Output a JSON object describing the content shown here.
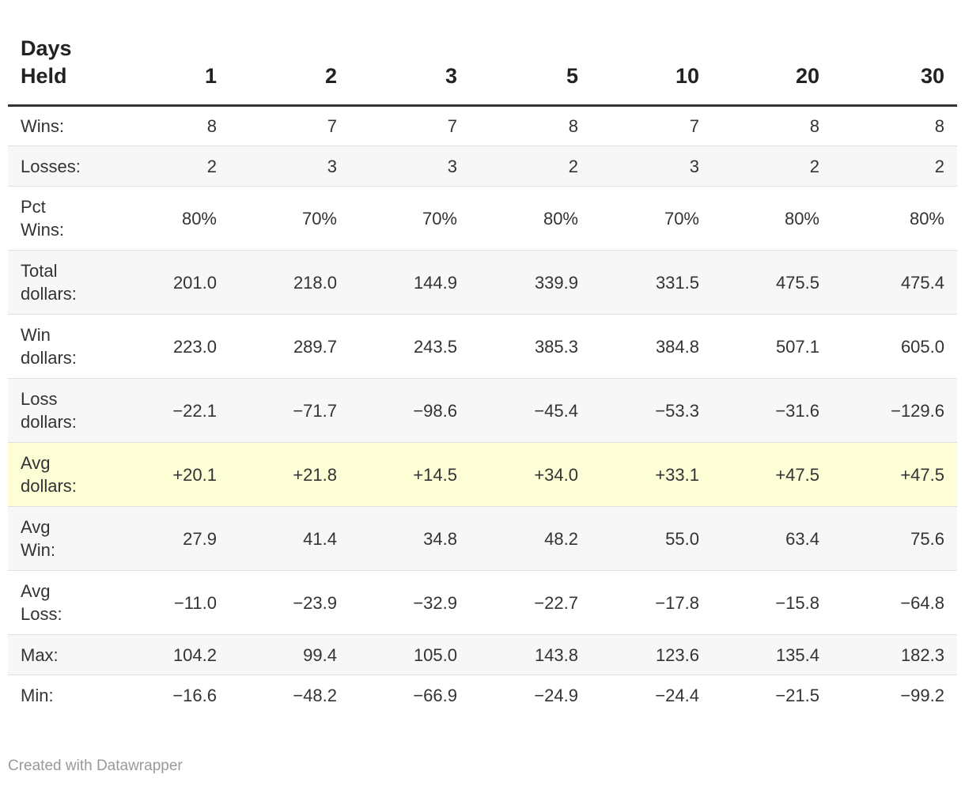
{
  "chart_data": {
    "type": "table",
    "header": {
      "label": "Days Held",
      "label_lines": [
        "Days",
        "Held"
      ],
      "columns": [
        "1",
        "2",
        "3",
        "5",
        "10",
        "20",
        "30"
      ]
    },
    "rows": [
      {
        "label_lines": [
          "Wins:"
        ],
        "values": [
          "8",
          "7",
          "7",
          "8",
          "7",
          "8",
          "8"
        ]
      },
      {
        "label_lines": [
          "Losses:"
        ],
        "values": [
          "2",
          "3",
          "3",
          "2",
          "3",
          "2",
          "2"
        ]
      },
      {
        "label_lines": [
          "Pct",
          "Wins:"
        ],
        "values": [
          "80%",
          "70%",
          "70%",
          "80%",
          "70%",
          "80%",
          "80%"
        ]
      },
      {
        "label_lines": [
          "Total",
          "dollars:"
        ],
        "values": [
          "201.0",
          "218.0",
          "144.9",
          "339.9",
          "331.5",
          "475.5",
          "475.4"
        ]
      },
      {
        "label_lines": [
          "Win",
          "dollars:"
        ],
        "values": [
          "223.0",
          "289.7",
          "243.5",
          "385.3",
          "384.8",
          "507.1",
          "605.0"
        ]
      },
      {
        "label_lines": [
          "Loss",
          "dollars:"
        ],
        "values": [
          "−22.1",
          "−71.7",
          "−98.6",
          "−45.4",
          "−53.3",
          "−31.6",
          "−129.6"
        ]
      },
      {
        "label_lines": [
          "Avg",
          "dollars:"
        ],
        "values": [
          "+20.1",
          "+21.8",
          "+14.5",
          "+34.0",
          "+33.1",
          "+47.5",
          "+47.5"
        ],
        "highlight": true
      },
      {
        "label_lines": [
          "Avg",
          "Win:"
        ],
        "values": [
          "27.9",
          "41.4",
          "34.8",
          "48.2",
          "55.0",
          "63.4",
          "75.6"
        ]
      },
      {
        "label_lines": [
          "Avg",
          "Loss:"
        ],
        "values": [
          "−11.0",
          "−23.9",
          "−32.9",
          "−22.7",
          "−17.8",
          "−15.8",
          "−64.8"
        ]
      },
      {
        "label_lines": [
          "Max:"
        ],
        "values": [
          "104.2",
          "99.4",
          "105.0",
          "143.8",
          "123.6",
          "135.4",
          "182.3"
        ]
      },
      {
        "label_lines": [
          "Min:"
        ],
        "values": [
          "−16.6",
          "−48.2",
          "−66.9",
          "−24.9",
          "−24.4",
          "−21.5",
          "−99.2"
        ]
      }
    ],
    "highlight_color": "#fdfdd6",
    "stripe_color": "#f7f7f7"
  },
  "footer": {
    "credit": "Created with Datawrapper"
  }
}
